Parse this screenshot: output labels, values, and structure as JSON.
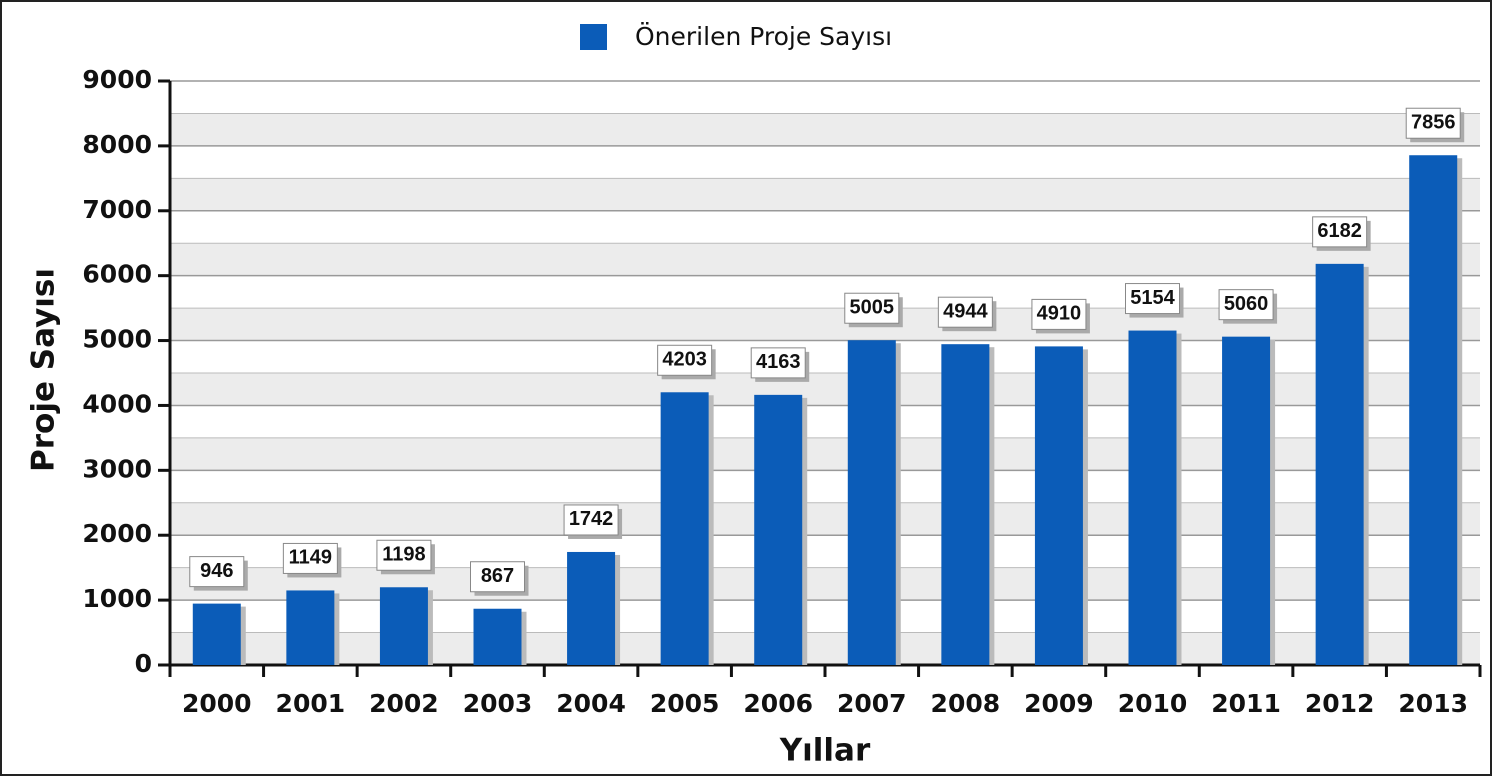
{
  "chart_data": {
    "type": "bar",
    "legend": "Önerilen Proje Sayısı",
    "x_label": "Yıllar",
    "y_label": "Proje Sayısı",
    "categories": [
      "2000",
      "2001",
      "2002",
      "2003",
      "2004",
      "2005",
      "2006",
      "2007",
      "2008",
      "2009",
      "2010",
      "2011",
      "2012",
      "2013"
    ],
    "values": [
      946,
      1149,
      1198,
      867,
      1742,
      4203,
      4163,
      5005,
      4944,
      4910,
      5154,
      5060,
      6182,
      7856
    ],
    "color": "#0b5cb8",
    "ylim": [
      0,
      9000
    ],
    "yticks": [
      0,
      1000,
      2000,
      3000,
      4000,
      5000,
      6000,
      7000,
      8000,
      9000
    ],
    "grid": true
  }
}
